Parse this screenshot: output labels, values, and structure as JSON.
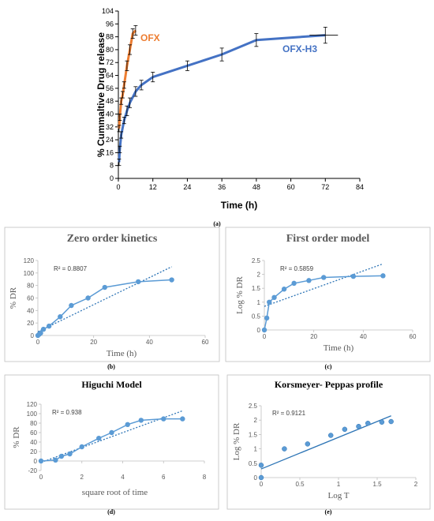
{
  "colors": {
    "ofx": "#ed7d31",
    "ofxh3": "#4472c4",
    "series": "#5b9bd5",
    "trend": "#2e75b6"
  },
  "chart_data": [
    {
      "id": "a",
      "type": "line",
      "caption": "(a)",
      "title": "",
      "xlabel": "Time (h)",
      "ylabel": "% Cummaltive Drug release",
      "xlim": [
        0,
        84
      ],
      "ylim": [
        0,
        104
      ],
      "xticks": [
        0,
        12,
        24,
        36,
        48,
        60,
        72,
        84
      ],
      "yticks": [
        0,
        8,
        16,
        24,
        32,
        40,
        48,
        56,
        64,
        72,
        80,
        88,
        96,
        104
      ],
      "grid": false,
      "series": [
        {
          "name": "OFX",
          "x": [
            0.25,
            0.5,
            1,
            1.5,
            2,
            3,
            4,
            5,
            6
          ],
          "y": [
            31,
            38,
            48,
            52,
            58,
            70,
            80,
            90,
            92
          ],
          "err": [
            2,
            2,
            2,
            2,
            2,
            3,
            3,
            3,
            3
          ]
        },
        {
          "name": "OFX-H3",
          "x": [
            0.25,
            0.5,
            1,
            2,
            3,
            4,
            6,
            8,
            12,
            24,
            36,
            48,
            72
          ],
          "y": [
            10,
            18,
            27,
            36,
            42,
            47,
            54,
            58,
            63,
            70,
            77,
            86,
            89
          ],
          "err": [
            2,
            2,
            2,
            2,
            3,
            3,
            3,
            3,
            3,
            3,
            4,
            4,
            5
          ]
        }
      ]
    },
    {
      "id": "b",
      "type": "scatter",
      "caption": "(b)",
      "title": "Zero order kinetics",
      "xlabel": "Time (h)",
      "ylabel": "% DR",
      "r2": "R² = 0.8807",
      "xlim": [
        0,
        60
      ],
      "ylim": [
        0,
        120
      ],
      "xticks": [
        0,
        20,
        40,
        60
      ],
      "yticks": [
        0,
        20,
        40,
        60,
        80,
        100,
        120
      ],
      "x": [
        0,
        0.5,
        1,
        2,
        4,
        8,
        12,
        18,
        24,
        36,
        48
      ],
      "y": [
        0,
        2,
        4,
        10,
        15,
        30,
        48,
        60,
        77,
        86,
        89
      ],
      "trendline": {
        "x": [
          0,
          48
        ],
        "y": [
          6,
          110
        ]
      }
    },
    {
      "id": "c",
      "type": "scatter",
      "caption": "(c)",
      "title": "First order model",
      "xlabel": "Time (h)",
      "ylabel": "Log % DR",
      "r2": "R² = 0.5859",
      "xlim": [
        0,
        60
      ],
      "ylim": [
        0,
        2.5
      ],
      "xticks": [
        0,
        20,
        40,
        60
      ],
      "yticks": [
        0,
        0.5,
        1,
        1.5,
        2,
        2.5
      ],
      "x": [
        0,
        1,
        2,
        4,
        8,
        12,
        18,
        24,
        36,
        48
      ],
      "y": [
        0,
        0.43,
        1.0,
        1.17,
        1.47,
        1.68,
        1.78,
        1.89,
        1.93,
        1.95
      ],
      "trendline": {
        "x": [
          0,
          48
        ],
        "y": [
          0.85,
          2.38
        ]
      }
    },
    {
      "id": "d",
      "type": "scatter",
      "caption": "(d)",
      "title": "Higuchi Model",
      "xlabel": "square root of time",
      "ylabel": "% DR",
      "r2": "R² = 0.938",
      "xlim": [
        0,
        8
      ],
      "ylim": [
        -20,
        120
      ],
      "xticks": [
        0,
        2,
        4,
        6,
        8
      ],
      "yticks": [
        -20,
        0,
        20,
        40,
        60,
        80,
        100,
        120
      ],
      "x": [
        0,
        0.71,
        1,
        1.41,
        2,
        2.83,
        3.46,
        4.24,
        4.9,
        6,
        6.93
      ],
      "y": [
        0,
        2,
        10,
        15,
        30,
        48,
        60,
        77,
        86,
        89,
        89
      ],
      "trendline": {
        "x": [
          0,
          6.93
        ],
        "y": [
          -3,
          106
        ]
      }
    },
    {
      "id": "e",
      "type": "scatter",
      "caption": "(e)",
      "title": "Korsmeyer- Peppas profile",
      "xlabel": "Log T",
      "ylabel": "Log % DR",
      "r2": "R² = 0.9121",
      "xlim": [
        0,
        2
      ],
      "ylim": [
        0,
        2.5
      ],
      "xticks": [
        0,
        0.5,
        1,
        1.5,
        2
      ],
      "yticks": [
        0,
        0.5,
        1,
        1.5,
        2,
        2.5
      ],
      "x": [
        0,
        0,
        0.3,
        0.6,
        0.9,
        1.08,
        1.26,
        1.38,
        1.56,
        1.68
      ],
      "y": [
        0,
        0.43,
        1.0,
        1.17,
        1.47,
        1.68,
        1.78,
        1.89,
        1.93,
        1.95
      ],
      "trendline": {
        "x": [
          0,
          1.68
        ],
        "y": [
          0.3,
          2.15
        ]
      }
    }
  ]
}
